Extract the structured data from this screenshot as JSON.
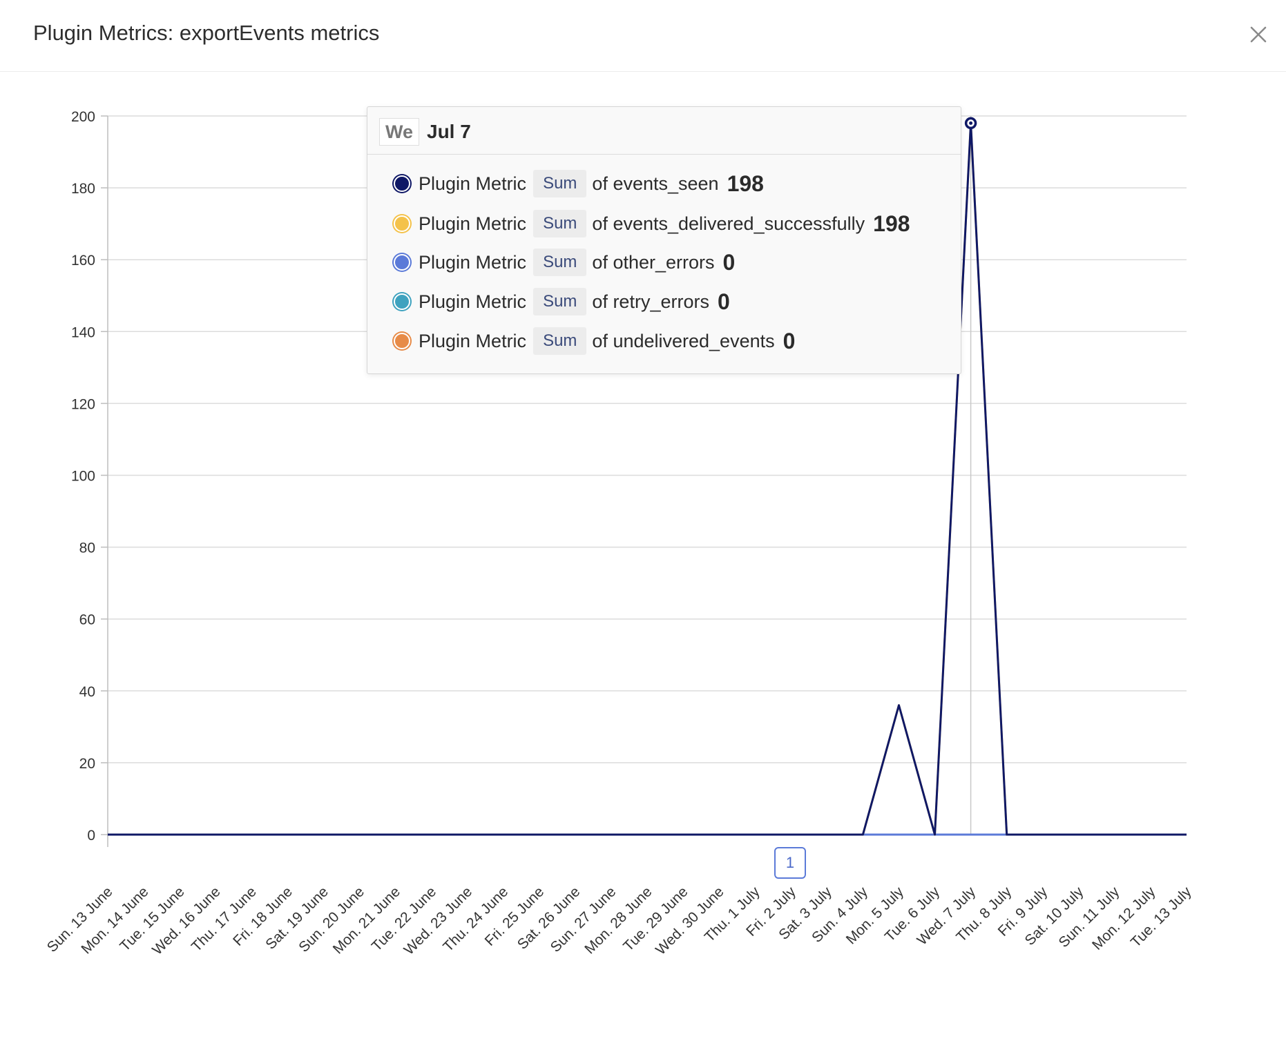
{
  "header": {
    "title": "Plugin Metrics: exportEvents metrics"
  },
  "icons": {
    "close": "close-icon"
  },
  "tooltip": {
    "day": "We",
    "date": "Jul 7",
    "rows": [
      {
        "label": "Plugin Metric",
        "agg": "Sum",
        "of": "of events_seen",
        "value": "198",
        "color": "#0f1866"
      },
      {
        "label": "Plugin Metric",
        "agg": "Sum",
        "of": "of events_delivered_successfully",
        "value": "198",
        "color": "#f4c24a"
      },
      {
        "label": "Plugin Metric",
        "agg": "Sum",
        "of": "of other_errors",
        "value": "0",
        "color": "#5b7ad8"
      },
      {
        "label": "Plugin Metric",
        "agg": "Sum",
        "of": "of retry_errors",
        "value": "0",
        "color": "#3ea2bf"
      },
      {
        "label": "Plugin Metric",
        "agg": "Sum",
        "of": "of undelivered_events",
        "value": "0",
        "color": "#e78b48"
      }
    ]
  },
  "annotation": {
    "label": "1"
  },
  "chart_data": {
    "type": "line",
    "title": "",
    "xlabel": "",
    "ylabel": "",
    "ylim": [
      0,
      200
    ],
    "yticks": [
      0,
      20,
      40,
      60,
      80,
      100,
      120,
      140,
      160,
      180,
      200
    ],
    "grid": true,
    "categories": [
      "Sun. 13 June",
      "Mon. 14 June",
      "Tue. 15 June",
      "Wed. 16 June",
      "Thu. 17 June",
      "Fri. 18 June",
      "Sat. 19 June",
      "Sun. 20 June",
      "Mon. 21 June",
      "Tue. 22 June",
      "Wed. 23 June",
      "Thu. 24 June",
      "Fri. 25 June",
      "Sat. 26 June",
      "Sun. 27 June",
      "Mon. 28 June",
      "Tue. 29 June",
      "Wed. 30 June",
      "Thu. 1 July",
      "Fri. 2 July",
      "Sat. 3 July",
      "Sun. 4 July",
      "Mon. 5 July",
      "Tue. 6 July",
      "Wed. 7 July",
      "Thu. 8 July",
      "Fri. 9 July",
      "Sat. 10 July",
      "Sun. 11 July",
      "Mon. 12 July",
      "Tue. 13 July"
    ],
    "series": [
      {
        "color": "#0f1866",
        "values": [
          0,
          0,
          0,
          0,
          0,
          0,
          0,
          0,
          0,
          0,
          0,
          0,
          0,
          0,
          0,
          0,
          0,
          0,
          0,
          0,
          0,
          0,
          36,
          0,
          198,
          0,
          0,
          0,
          0,
          0,
          0
        ]
      },
      {
        "color": "#f4c24a",
        "values": [
          0,
          0,
          0,
          0,
          0,
          0,
          0,
          0,
          0,
          0,
          0,
          0,
          0,
          0,
          0,
          0,
          0,
          0,
          0,
          0,
          0,
          0,
          36,
          0,
          198,
          0,
          0,
          0,
          0,
          0,
          0
        ]
      },
      {
        "color": "#5b7ad8",
        "values": [
          0,
          0,
          0,
          0,
          0,
          0,
          0,
          0,
          0,
          0,
          0,
          0,
          0,
          0,
          0,
          0,
          0,
          0,
          0,
          0,
          0,
          0,
          0,
          0,
          0,
          0,
          0,
          0,
          0,
          0,
          0
        ]
      },
      {
        "color": "#3ea2bf",
        "values": [
          0,
          0,
          0,
          0,
          0,
          0,
          0,
          0,
          0,
          0,
          0,
          0,
          0,
          0,
          0,
          0,
          0,
          0,
          0,
          0,
          0,
          0,
          0,
          0,
          0,
          0,
          0,
          0,
          0,
          0,
          0
        ]
      },
      {
        "color": "#e78b48",
        "values": [
          0,
          0,
          0,
          0,
          0,
          0,
          0,
          0,
          0,
          0,
          0,
          0,
          0,
          0,
          0,
          0,
          0,
          0,
          0,
          0,
          0,
          0,
          0,
          0,
          0,
          0,
          0,
          0,
          0,
          0,
          0
        ]
      }
    ],
    "hover_index": 24
  }
}
